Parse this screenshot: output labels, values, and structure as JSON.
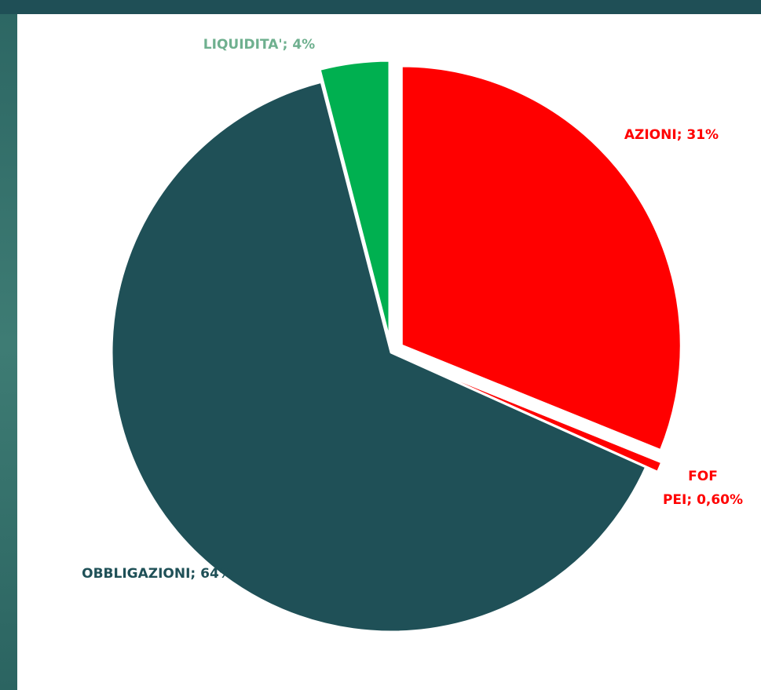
{
  "chart_data": {
    "type": "pie",
    "values": [
      31,
      0.6,
      64,
      4
    ],
    "value_labels": [
      "AZIONI; 31%",
      "FOF PEI; 0,60%",
      "OBBLIGAZIONI; 64%",
      "LIQUIDITA'; 4%"
    ],
    "colors": [
      "#ff0000",
      "#ff0000",
      "#1f5057",
      "#00b050"
    ],
    "label_colors": [
      "#ff0000",
      "#ff0000",
      "#1f5057",
      "#6fb08f"
    ]
  }
}
